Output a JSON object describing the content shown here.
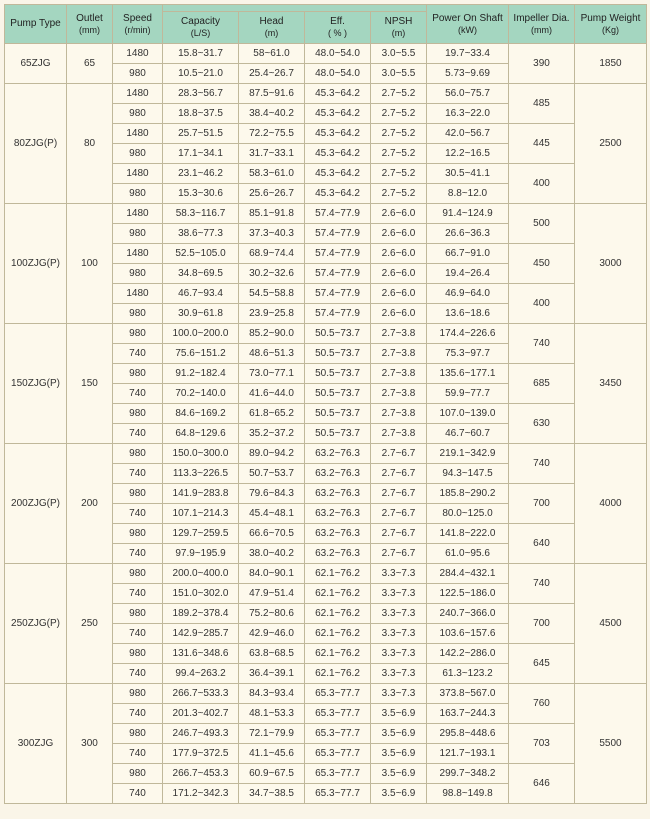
{
  "headers": {
    "pump_type": "Pump Type",
    "outlet": "Outlet",
    "outlet_unit": "(mm)",
    "speed": "Speed",
    "speed_unit": "(r/min)",
    "capacity": "Capacity",
    "capacity_unit": "(L/S)",
    "head": "Head",
    "head_unit": "(m)",
    "eff": "Eff.",
    "eff_unit": "( % )",
    "npsh": "NPSH",
    "npsh_unit": "(m)",
    "power": "Power On Shaft",
    "power_unit": "(kW)",
    "impeller": "Impeller Dia.",
    "impeller_unit": "(mm)",
    "weight": "Pump Weight",
    "weight_unit": "(Kg)"
  },
  "groups": [
    {
      "type": "65ZJG",
      "outlet": "65",
      "weight": "1850",
      "impellers": [
        {
          "dia": "390",
          "rows": [
            {
              "speed": "1480",
              "cap": "15.8~31.7",
              "head": "58~61.0",
              "eff": "48.0~54.0",
              "npsh": "3.0~5.5",
              "power": "19.7~33.4"
            },
            {
              "speed": "980",
              "cap": "10.5~21.0",
              "head": "25.4~26.7",
              "eff": "48.0~54.0",
              "npsh": "3.0~5.5",
              "power": "5.73~9.69"
            }
          ]
        }
      ]
    },
    {
      "type": "80ZJG(P)",
      "outlet": "80",
      "weight": "2500",
      "impellers": [
        {
          "dia": "485",
          "rows": [
            {
              "speed": "1480",
              "cap": "28.3~56.7",
              "head": "87.5~91.6",
              "eff": "45.3~64.2",
              "npsh": "2.7~5.2",
              "power": "56.0~75.7"
            },
            {
              "speed": "980",
              "cap": "18.8~37.5",
              "head": "38.4~40.2",
              "eff": "45.3~64.2",
              "npsh": "2.7~5.2",
              "power": "16.3~22.0"
            }
          ]
        },
        {
          "dia": "445",
          "rows": [
            {
              "speed": "1480",
              "cap": "25.7~51.5",
              "head": "72.2~75.5",
              "eff": "45.3~64.2",
              "npsh": "2.7~5.2",
              "power": "42.0~56.7"
            },
            {
              "speed": "980",
              "cap": "17.1~34.1",
              "head": "31.7~33.1",
              "eff": "45.3~64.2",
              "npsh": "2.7~5.2",
              "power": "12.2~16.5"
            }
          ]
        },
        {
          "dia": "400",
          "rows": [
            {
              "speed": "1480",
              "cap": "23.1~46.2",
              "head": "58.3~61.0",
              "eff": "45.3~64.2",
              "npsh": "2.7~5.2",
              "power": "30.5~41.1"
            },
            {
              "speed": "980",
              "cap": "15.3~30.6",
              "head": "25.6~26.7",
              "eff": "45.3~64.2",
              "npsh": "2.7~5.2",
              "power": "8.8~12.0"
            }
          ]
        }
      ]
    },
    {
      "type": "100ZJG(P)",
      "outlet": "100",
      "weight": "3000",
      "impellers": [
        {
          "dia": "500",
          "rows": [
            {
              "speed": "1480",
              "cap": "58.3~116.7",
              "head": "85.1~91.8",
              "eff": "57.4~77.9",
              "npsh": "2.6~6.0",
              "power": "91.4~124.9"
            },
            {
              "speed": "980",
              "cap": "38.6~77.3",
              "head": "37.3~40.3",
              "eff": "57.4~77.9",
              "npsh": "2.6~6.0",
              "power": "26.6~36.3"
            }
          ]
        },
        {
          "dia": "450",
          "rows": [
            {
              "speed": "1480",
              "cap": "52.5~105.0",
              "head": "68.9~74.4",
              "eff": "57.4~77.9",
              "npsh": "2.6~6.0",
              "power": "66.7~91.0"
            },
            {
              "speed": "980",
              "cap": "34.8~69.5",
              "head": "30.2~32.6",
              "eff": "57.4~77.9",
              "npsh": "2.6~6.0",
              "power": "19.4~26.4"
            }
          ]
        },
        {
          "dia": "400",
          "rows": [
            {
              "speed": "1480",
              "cap": "46.7~93.4",
              "head": "54.5~58.8",
              "eff": "57.4~77.9",
              "npsh": "2.6~6.0",
              "power": "46.9~64.0"
            },
            {
              "speed": "980",
              "cap": "30.9~61.8",
              "head": "23.9~25.8",
              "eff": "57.4~77.9",
              "npsh": "2.6~6.0",
              "power": "13.6~18.6"
            }
          ]
        }
      ]
    },
    {
      "type": "150ZJG(P)",
      "outlet": "150",
      "weight": "3450",
      "impellers": [
        {
          "dia": "740",
          "rows": [
            {
              "speed": "980",
              "cap": "100.0~200.0",
              "head": "85.2~90.0",
              "eff": "50.5~73.7",
              "npsh": "2.7~3.8",
              "power": "174.4~226.6"
            },
            {
              "speed": "740",
              "cap": "75.6~151.2",
              "head": "48.6~51.3",
              "eff": "50.5~73.7",
              "npsh": "2.7~3.8",
              "power": "75.3~97.7"
            }
          ]
        },
        {
          "dia": "685",
          "rows": [
            {
              "speed": "980",
              "cap": "91.2~182.4",
              "head": "73.0~77.1",
              "eff": "50.5~73.7",
              "npsh": "2.7~3.8",
              "power": "135.6~177.1"
            },
            {
              "speed": "740",
              "cap": "70.2~140.0",
              "head": "41.6~44.0",
              "eff": "50.5~73.7",
              "npsh": "2.7~3.8",
              "power": "59.9~77.7"
            }
          ]
        },
        {
          "dia": "630",
          "rows": [
            {
              "speed": "980",
              "cap": "84.6~169.2",
              "head": "61.8~65.2",
              "eff": "50.5~73.7",
              "npsh": "2.7~3.8",
              "power": "107.0~139.0"
            },
            {
              "speed": "740",
              "cap": "64.8~129.6",
              "head": "35.2~37.2",
              "eff": "50.5~73.7",
              "npsh": "2.7~3.8",
              "power": "46.7~60.7"
            }
          ]
        }
      ]
    },
    {
      "type": "200ZJG(P)",
      "outlet": "200",
      "weight": "4000",
      "impellers": [
        {
          "dia": "740",
          "rows": [
            {
              "speed": "980",
              "cap": "150.0~300.0",
              "head": "89.0~94.2",
              "eff": "63.2~76.3",
              "npsh": "2.7~6.7",
              "power": "219.1~342.9"
            },
            {
              "speed": "740",
              "cap": "113.3~226.5",
              "head": "50.7~53.7",
              "eff": "63.2~76.3",
              "npsh": "2.7~6.7",
              "power": "94.3~147.5"
            }
          ]
        },
        {
          "dia": "700",
          "rows": [
            {
              "speed": "980",
              "cap": "141.9~283.8",
              "head": "79.6~84.3",
              "eff": "63.2~76.3",
              "npsh": "2.7~6.7",
              "power": "185.8~290.2"
            },
            {
              "speed": "740",
              "cap": "107.1~214.3",
              "head": "45.4~48.1",
              "eff": "63.2~76.3",
              "npsh": "2.7~6.7",
              "power": "80.0~125.0"
            }
          ]
        },
        {
          "dia": "640",
          "rows": [
            {
              "speed": "980",
              "cap": "129.7~259.5",
              "head": "66.6~70.5",
              "eff": "63.2~76.3",
              "npsh": "2.7~6.7",
              "power": "141.8~222.0"
            },
            {
              "speed": "740",
              "cap": "97.9~195.9",
              "head": "38.0~40.2",
              "eff": "63.2~76.3",
              "npsh": "2.7~6.7",
              "power": "61.0~95.6"
            }
          ]
        }
      ]
    },
    {
      "type": "250ZJG(P)",
      "outlet": "250",
      "weight": "4500",
      "impellers": [
        {
          "dia": "740",
          "rows": [
            {
              "speed": "980",
              "cap": "200.0~400.0",
              "head": "84.0~90.1",
              "eff": "62.1~76.2",
              "npsh": "3.3~7.3",
              "power": "284.4~432.1"
            },
            {
              "speed": "740",
              "cap": "151.0~302.0",
              "head": "47.9~51.4",
              "eff": "62.1~76.2",
              "npsh": "3.3~7.3",
              "power": "122.5~186.0"
            }
          ]
        },
        {
          "dia": "700",
          "rows": [
            {
              "speed": "980",
              "cap": "189.2~378.4",
              "head": "75.2~80.6",
              "eff": "62.1~76.2",
              "npsh": "3.3~7.3",
              "power": "240.7~366.0"
            },
            {
              "speed": "740",
              "cap": "142.9~285.7",
              "head": "42.9~46.0",
              "eff": "62.1~76.2",
              "npsh": "3.3~7.3",
              "power": "103.6~157.6"
            }
          ]
        },
        {
          "dia": "645",
          "rows": [
            {
              "speed": "980",
              "cap": "131.6~348.6",
              "head": "63.8~68.5",
              "eff": "62.1~76.2",
              "npsh": "3.3~7.3",
              "power": "142.2~286.0"
            },
            {
              "speed": "740",
              "cap": "99.4~263.2",
              "head": "36.4~39.1",
              "eff": "62.1~76.2",
              "npsh": "3.3~7.3",
              "power": "61.3~123.2"
            }
          ]
        }
      ]
    },
    {
      "type": "300ZJG",
      "outlet": "300",
      "weight": "5500",
      "impellers": [
        {
          "dia": "760",
          "rows": [
            {
              "speed": "980",
              "cap": "266.7~533.3",
              "head": "84.3~93.4",
              "eff": "65.3~77.7",
              "npsh": "3.3~7.3",
              "power": "373.8~567.0"
            },
            {
              "speed": "740",
              "cap": "201.3~402.7",
              "head": "48.1~53.3",
              "eff": "65.3~77.7",
              "npsh": "3.5~6.9",
              "power": "163.7~244.3"
            }
          ]
        },
        {
          "dia": "703",
          "rows": [
            {
              "speed": "980",
              "cap": "246.7~493.3",
              "head": "72.1~79.9",
              "eff": "65.3~77.7",
              "npsh": "3.5~6.9",
              "power": "295.8~448.6"
            },
            {
              "speed": "740",
              "cap": "177.9~372.5",
              "head": "41.1~45.6",
              "eff": "65.3~77.7",
              "npsh": "3.5~6.9",
              "power": "121.7~193.1"
            }
          ]
        },
        {
          "dia": "646",
          "rows": [
            {
              "speed": "980",
              "cap": "266.7~453.3",
              "head": "60.9~67.5",
              "eff": "65.3~77.7",
              "npsh": "3.5~6.9",
              "power": "299.7~348.2"
            },
            {
              "speed": "740",
              "cap": "171.2~342.3",
              "head": "34.7~38.5",
              "eff": "65.3~77.7",
              "npsh": "3.5~6.9",
              "power": "98.8~149.8"
            }
          ]
        }
      ]
    }
  ]
}
